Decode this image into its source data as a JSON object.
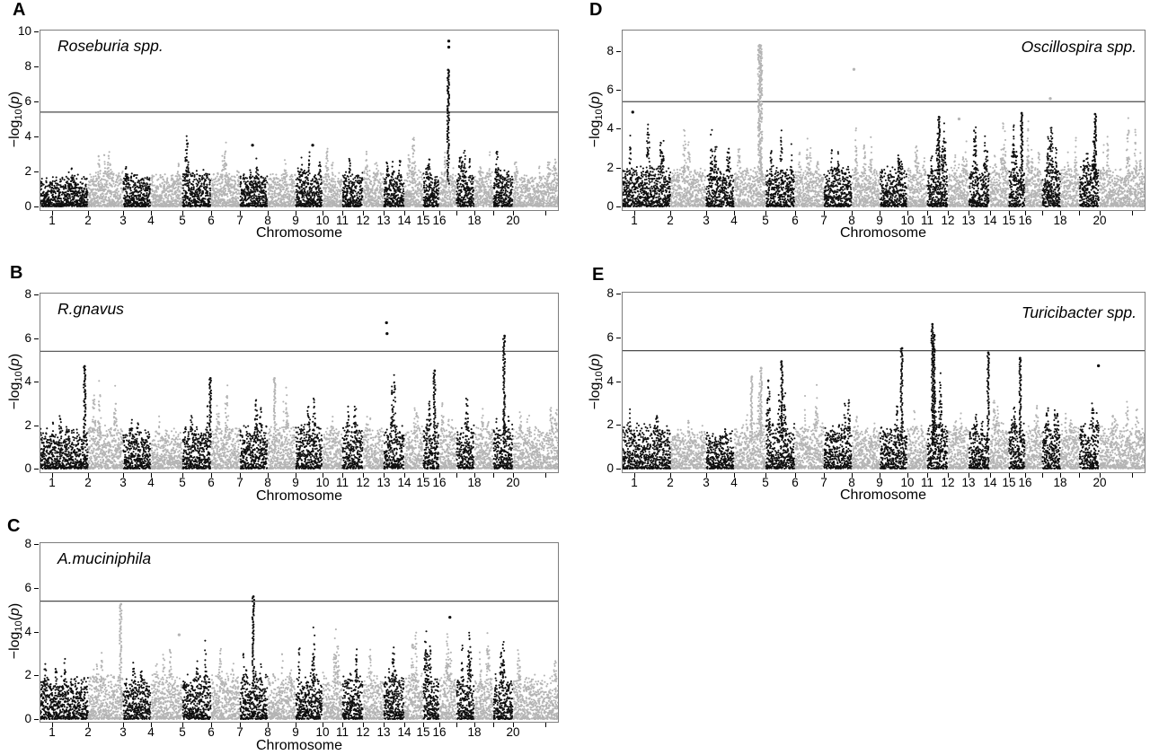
{
  "figure": {
    "background": "#ffffff"
  },
  "axis": {
    "xlabel": "Chromosome",
    "ylabel": {
      "base": "−log",
      "sub": "10",
      "open": "(",
      "var": "p",
      "close": ")"
    }
  },
  "chart_data": {
    "type": "scatter",
    "subtype": "manhattan_gwas_multipanel",
    "threshold_line": 5.39,
    "grid": false,
    "x_axis": {
      "label": "Chromosome",
      "chromosomes": [
        "1",
        "2",
        "3",
        "4",
        "5",
        "6",
        "7",
        "8",
        "9",
        "10",
        "11",
        "12",
        "13",
        "14",
        "15",
        "16",
        "17",
        "18",
        "19",
        "20",
        "X"
      ],
      "tick_labels": [
        "1",
        "2",
        "3",
        "4",
        "5",
        "6",
        "7",
        "8",
        "9",
        "10",
        "11",
        "12",
        "13",
        "14",
        "15",
        "16",
        "",
        "18",
        "",
        "20",
        ""
      ]
    },
    "colors": {
      "chrom_odd": "#0f0f0f",
      "chrom_even": "#b4b4b4",
      "threshold_line": "#4a4a4a",
      "box_border": "#7d7d7d",
      "text": "#000000"
    },
    "chrom_rel_widths": [
      54,
      39,
      31,
      35,
      32,
      32,
      31,
      31,
      30,
      22,
      23,
      23,
      23,
      21,
      18,
      19,
      20,
      21,
      22,
      36,
      15
    ],
    "panels": [
      {
        "id": "A",
        "title": "Roseburia spp.",
        "title_side": "left",
        "ylim": [
          0,
          10
        ],
        "yticks": [
          0,
          2,
          4,
          6,
          8,
          10
        ],
        "chr_max": [
          2.4,
          3.5,
          2.4,
          2.6,
          4.2,
          3.9,
          2.9,
          2.9,
          3.3,
          3.7,
          3.3,
          3.4,
          3.4,
          4.0,
          3.0,
          3.2,
          3.5,
          3.3,
          3.4,
          2.8,
          3.3
        ],
        "peaks": [
          {
            "c": 16,
            "p": 0.52,
            "col": "k",
            "line": 7.8,
            "dots": [
              9.1,
              9.45
            ]
          },
          {
            "c": 7,
            "p": 0.45,
            "dots": [
              3.5
            ]
          },
          {
            "c": 9,
            "p": 0.6,
            "dots": [
              3.5
            ]
          }
        ]
      },
      {
        "id": "B",
        "title": "R.gnavus",
        "title_side": "left",
        "ylim": [
          0,
          8
        ],
        "yticks": [
          0,
          2,
          4,
          6,
          8
        ],
        "chr_max": [
          2.6,
          4.3,
          2.5,
          2.5,
          3.0,
          4.0,
          3.4,
          4.0,
          3.5,
          2.6,
          3.2,
          2.6,
          4.4,
          3.2,
          3.6,
          3.1,
          3.4,
          3.0,
          3.3,
          2.9,
          3.4
        ],
        "peaks": [
          {
            "c": 1,
            "p": 0.93,
            "line": 4.7
          },
          {
            "c": 5,
            "p": 0.97,
            "line": 4.15
          },
          {
            "c": 8,
            "p": 0.25,
            "col": "g",
            "line": 4.15
          },
          {
            "c": 13,
            "p": 0.18,
            "dots": [
              6.2,
              6.7
            ]
          },
          {
            "c": 15,
            "p": 0.7,
            "line": 4.5
          },
          {
            "c": 19,
            "p": 0.55,
            "line": 6.1
          }
        ]
      },
      {
        "id": "C",
        "title": "A.muciniphila",
        "title_side": "left",
        "ylim": [
          0,
          8
        ],
        "yticks": [
          0,
          2,
          4,
          6,
          8
        ],
        "chr_max": [
          3.0,
          3.4,
          3.0,
          3.6,
          3.9,
          3.5,
          3.4,
          3.1,
          4.45,
          4.3,
          3.6,
          3.4,
          3.6,
          4.25,
          4.3,
          4.2,
          4.4,
          4.35,
          4.3,
          3.4,
          3.1
        ],
        "peaks": [
          {
            "c": 2,
            "p": 0.93,
            "line": 5.25
          },
          {
            "c": 4,
            "p": 0.9,
            "dots": [
              3.85
            ]
          },
          {
            "c": 7,
            "p": 0.48,
            "line": 5.6
          },
          {
            "c": 16,
            "p": 0.6,
            "col": "k",
            "dots": [
              4.65
            ]
          }
        ]
      },
      {
        "id": "D",
        "title": "Oscillospira spp.",
        "title_side": "right",
        "ylim": [
          0,
          9
        ],
        "yticks": [
          0,
          2,
          4,
          6,
          8
        ],
        "chr_max": [
          4.3,
          4.35,
          4.1,
          4.0,
          4.1,
          4.0,
          3.2,
          4.55,
          3.3,
          3.4,
          4.6,
          3.5,
          4.35,
          4.4,
          4.3,
          4.6,
          4.4,
          3.9,
          4.4,
          4.75,
          4.35
        ],
        "peaks": [
          {
            "c": 1,
            "p": 0.25,
            "dots": [
              4.85
            ]
          },
          {
            "c": 4,
            "p": 0.82,
            "line": 8.3,
            "w": 2.2
          },
          {
            "c": 8,
            "p": 0.1,
            "dots": [
              7.05
            ]
          },
          {
            "c": 11,
            "p": 0.57,
            "line": 4.6
          },
          {
            "c": 12,
            "p": 0.5,
            "col": "g",
            "dots": [
              4.5
            ]
          },
          {
            "c": 15,
            "p": 0.8,
            "line": 4.8
          },
          {
            "c": 17,
            "p": 0.5,
            "col": "g",
            "dots": [
              5.55
            ]
          },
          {
            "c": 19,
            "p": 0.8,
            "line": 4.75
          }
        ]
      },
      {
        "id": "E",
        "title": "Turicibacter spp.",
        "title_side": "right",
        "ylim": [
          0,
          8
        ],
        "yticks": [
          0,
          2,
          4,
          6,
          8
        ],
        "chr_max": [
          3.35,
          2.4,
          2.1,
          4.3,
          4.3,
          3.9,
          3.4,
          2.6,
          3.3,
          3.0,
          4.5,
          2.9,
          2.7,
          3.5,
          3.5,
          3.0,
          3.3,
          3.1,
          3.5,
          3.2,
          2.9
        ],
        "peaks": [
          {
            "c": 4,
            "p": 0.55,
            "line": 4.2
          },
          {
            "c": 4,
            "p": 0.85,
            "line": 4.6
          },
          {
            "c": 5,
            "p": 0.55,
            "line": 4.9
          },
          {
            "c": 9,
            "p": 0.8,
            "line": 5.5
          },
          {
            "c": 11,
            "p": 0.25,
            "line": 6.6
          },
          {
            "c": 11,
            "p": 0.33,
            "line": 6.1
          },
          {
            "c": 13,
            "p": 0.93,
            "line": 5.3
          },
          {
            "c": 15,
            "p": 0.7,
            "line": 5.05
          },
          {
            "c": 19,
            "p": 0.9,
            "dots": [
              4.7
            ]
          }
        ]
      }
    ]
  }
}
